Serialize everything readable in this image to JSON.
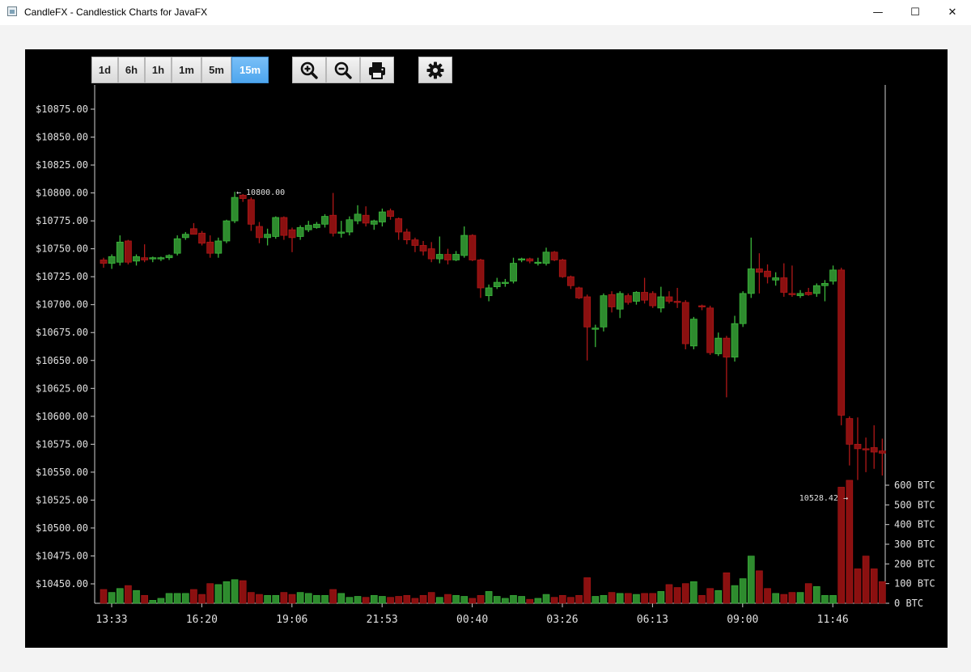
{
  "window": {
    "title": "CandleFX - Candlestick Charts for JavaFX",
    "controls": {
      "minimize": "—",
      "maximize": "☐",
      "close": "✕"
    }
  },
  "toolbar": {
    "granularity": [
      {
        "label": "1d",
        "active": false
      },
      {
        "label": "6h",
        "active": false
      },
      {
        "label": "1h",
        "active": false
      },
      {
        "label": "1m",
        "active": false
      },
      {
        "label": "5m",
        "active": false
      },
      {
        "label": "15m",
        "active": true
      }
    ],
    "icons": [
      "zoom-in-icon",
      "zoom-out-icon",
      "print-icon",
      "settings-gear-icon"
    ],
    "accent": "#5aaff2"
  },
  "colors": {
    "up": "#2e8b2e",
    "down": "#8b1010",
    "up_wick": "#3cb83c",
    "down_wick": "#b01818",
    "background": "#000000",
    "axis_text": "#e0e0e0"
  },
  "chart_data": {
    "type": "candlestick",
    "price_axis": {
      "ticks": [
        "$10875.00",
        "$10850.00",
        "$10825.00",
        "$10800.00",
        "$10775.00",
        "$10750.00",
        "$10725.00",
        "$10700.00",
        "$10675.00",
        "$10650.00",
        "$10625.00",
        "$10600.00",
        "$10575.00",
        "$10550.00",
        "$10525.00",
        "$10500.00",
        "$10475.00",
        "$10450.00"
      ],
      "range": [
        10432,
        10895
      ]
    },
    "volume_axis": {
      "ticks": [
        "600 BTC",
        "500 BTC",
        "400 BTC",
        "300 BTC",
        "200 BTC",
        "100 BTC",
        "0 BTC"
      ],
      "range": [
        0,
        600
      ]
    },
    "time_axis": {
      "ticks": [
        "13:33",
        "16:20",
        "19:06",
        "21:53",
        "00:40",
        "03:26",
        "06:13",
        "09:00",
        "11:46"
      ]
    },
    "annotations": {
      "high": "← 10800.00",
      "low": "10528.42 →"
    },
    "candles": [
      {
        "o": 10740,
        "h": 10742,
        "l": 10733,
        "c": 10737,
        "v": 70
      },
      {
        "o": 10737,
        "h": 10745,
        "l": 10732,
        "c": 10743,
        "v": 55
      },
      {
        "o": 10738,
        "h": 10762,
        "l": 10735,
        "c": 10756,
        "v": 75
      },
      {
        "o": 10757,
        "h": 10758,
        "l": 10736,
        "c": 10738,
        "v": 90
      },
      {
        "o": 10739,
        "h": 10745,
        "l": 10735,
        "c": 10743,
        "v": 65
      },
      {
        "o": 10742,
        "h": 10754,
        "l": 10738,
        "c": 10740,
        "v": 40
      },
      {
        "o": 10741,
        "h": 10743,
        "l": 10738,
        "c": 10742,
        "v": 15
      },
      {
        "o": 10741,
        "h": 10743,
        "l": 10739,
        "c": 10742,
        "v": 25
      },
      {
        "o": 10742,
        "h": 10745,
        "l": 10740,
        "c": 10744,
        "v": 50
      },
      {
        "o": 10746,
        "h": 10762,
        "l": 10744,
        "c": 10759,
        "v": 50
      },
      {
        "o": 10760,
        "h": 10765,
        "l": 10758,
        "c": 10763,
        "v": 50
      },
      {
        "o": 10768,
        "h": 10773,
        "l": 10764,
        "c": 10763,
        "v": 70
      },
      {
        "o": 10764,
        "h": 10766,
        "l": 10753,
        "c": 10755,
        "v": 45
      },
      {
        "o": 10756,
        "h": 10762,
        "l": 10742,
        "c": 10746,
        "v": 100
      },
      {
        "o": 10746,
        "h": 10760,
        "l": 10742,
        "c": 10757,
        "v": 95
      },
      {
        "o": 10757,
        "h": 10776,
        "l": 10755,
        "c": 10775,
        "v": 110
      },
      {
        "o": 10775,
        "h": 10801,
        "l": 10773,
        "c": 10796,
        "v": 120
      },
      {
        "o": 10798,
        "h": 10799,
        "l": 10792,
        "c": 10795,
        "v": 115
      },
      {
        "o": 10794,
        "h": 10796,
        "l": 10766,
        "c": 10772,
        "v": 55
      },
      {
        "o": 10770,
        "h": 10774,
        "l": 10755,
        "c": 10760,
        "v": 45
      },
      {
        "o": 10760,
        "h": 10768,
        "l": 10753,
        "c": 10763,
        "v": 40
      },
      {
        "o": 10761,
        "h": 10779,
        "l": 10759,
        "c": 10778,
        "v": 40
      },
      {
        "o": 10778,
        "h": 10779,
        "l": 10758,
        "c": 10762,
        "v": 55
      },
      {
        "o": 10767,
        "h": 10769,
        "l": 10747,
        "c": 10760,
        "v": 45
      },
      {
        "o": 10761,
        "h": 10771,
        "l": 10758,
        "c": 10769,
        "v": 55
      },
      {
        "o": 10767,
        "h": 10775,
        "l": 10765,
        "c": 10771,
        "v": 50
      },
      {
        "o": 10769,
        "h": 10774,
        "l": 10768,
        "c": 10772,
        "v": 40
      },
      {
        "o": 10772,
        "h": 10781,
        "l": 10769,
        "c": 10779,
        "v": 40
      },
      {
        "o": 10780,
        "h": 10800,
        "l": 10761,
        "c": 10764,
        "v": 70
      },
      {
        "o": 10764,
        "h": 10775,
        "l": 10760,
        "c": 10765,
        "v": 50
      },
      {
        "o": 10765,
        "h": 10779,
        "l": 10762,
        "c": 10776,
        "v": 30
      },
      {
        "o": 10775,
        "h": 10789,
        "l": 10772,
        "c": 10781,
        "v": 35
      },
      {
        "o": 10780,
        "h": 10788,
        "l": 10770,
        "c": 10773,
        "v": 30
      },
      {
        "o": 10772,
        "h": 10776,
        "l": 10767,
        "c": 10775,
        "v": 40
      },
      {
        "o": 10774,
        "h": 10786,
        "l": 10770,
        "c": 10783,
        "v": 35
      },
      {
        "o": 10784,
        "h": 10786,
        "l": 10776,
        "c": 10779,
        "v": 30
      },
      {
        "o": 10777,
        "h": 10778,
        "l": 10758,
        "c": 10765,
        "v": 35
      },
      {
        "o": 10765,
        "h": 10768,
        "l": 10754,
        "c": 10758,
        "v": 40
      },
      {
        "o": 10758,
        "h": 10760,
        "l": 10747,
        "c": 10753,
        "v": 25
      },
      {
        "o": 10753,
        "h": 10757,
        "l": 10744,
        "c": 10748,
        "v": 40
      },
      {
        "o": 10750,
        "h": 10756,
        "l": 10738,
        "c": 10741,
        "v": 55
      },
      {
        "o": 10741,
        "h": 10761,
        "l": 10737,
        "c": 10745,
        "v": 30
      },
      {
        "o": 10745,
        "h": 10750,
        "l": 10736,
        "c": 10740,
        "v": 45
      },
      {
        "o": 10740,
        "h": 10748,
        "l": 10739,
        "c": 10745,
        "v": 40
      },
      {
        "o": 10744,
        "h": 10770,
        "l": 10742,
        "c": 10762,
        "v": 35
      },
      {
        "o": 10762,
        "h": 10763,
        "l": 10739,
        "c": 10740,
        "v": 25
      },
      {
        "o": 10740,
        "h": 10741,
        "l": 10706,
        "c": 10715,
        "v": 40
      },
      {
        "o": 10708,
        "h": 10718,
        "l": 10703,
        "c": 10715,
        "v": 60
      },
      {
        "o": 10716,
        "h": 10724,
        "l": 10714,
        "c": 10720,
        "v": 35
      },
      {
        "o": 10719,
        "h": 10723,
        "l": 10716,
        "c": 10720,
        "v": 25
      },
      {
        "o": 10721,
        "h": 10742,
        "l": 10719,
        "c": 10737,
        "v": 40
      },
      {
        "o": 10741,
        "h": 10742,
        "l": 10738,
        "c": 10741,
        "v": 35
      },
      {
        "o": 10741,
        "h": 10742,
        "l": 10737,
        "c": 10739,
        "v": 20
      },
      {
        "o": 10738,
        "h": 10742,
        "l": 10735,
        "c": 10738,
        "v": 25
      },
      {
        "o": 10737,
        "h": 10751,
        "l": 10735,
        "c": 10747,
        "v": 45
      },
      {
        "o": 10747,
        "h": 10748,
        "l": 10739,
        "c": 10740,
        "v": 30
      },
      {
        "o": 10740,
        "h": 10741,
        "l": 10724,
        "c": 10725,
        "v": 40
      },
      {
        "o": 10725,
        "h": 10726,
        "l": 10714,
        "c": 10717,
        "v": 30
      },
      {
        "o": 10715,
        "h": 10716,
        "l": 10705,
        "c": 10706,
        "v": 40
      },
      {
        "o": 10707,
        "h": 10709,
        "l": 10650,
        "c": 10680,
        "v": 130
      },
      {
        "o": 10678,
        "h": 10682,
        "l": 10662,
        "c": 10679,
        "v": 35
      },
      {
        "o": 10680,
        "h": 10710,
        "l": 10676,
        "c": 10708,
        "v": 40
      },
      {
        "o": 10709,
        "h": 10712,
        "l": 10693,
        "c": 10698,
        "v": 55
      },
      {
        "o": 10696,
        "h": 10712,
        "l": 10688,
        "c": 10710,
        "v": 50
      },
      {
        "o": 10708,
        "h": 10710,
        "l": 10700,
        "c": 10702,
        "v": 50
      },
      {
        "o": 10703,
        "h": 10712,
        "l": 10700,
        "c": 10711,
        "v": 45
      },
      {
        "o": 10711,
        "h": 10724,
        "l": 10701,
        "c": 10704,
        "v": 50
      },
      {
        "o": 10710,
        "h": 10712,
        "l": 10697,
        "c": 10699,
        "v": 50
      },
      {
        "o": 10697,
        "h": 10716,
        "l": 10693,
        "c": 10707,
        "v": 60
      },
      {
        "o": 10707,
        "h": 10712,
        "l": 10701,
        "c": 10703,
        "v": 95
      },
      {
        "o": 10703,
        "h": 10715,
        "l": 10697,
        "c": 10702,
        "v": 80
      },
      {
        "o": 10702,
        "h": 10704,
        "l": 10660,
        "c": 10665,
        "v": 100
      },
      {
        "o": 10663,
        "h": 10689,
        "l": 10660,
        "c": 10687,
        "v": 110
      },
      {
        "o": 10699,
        "h": 10700,
        "l": 10695,
        "c": 10698,
        "v": 40
      },
      {
        "o": 10697,
        "h": 10699,
        "l": 10655,
        "c": 10657,
        "v": 75
      },
      {
        "o": 10656,
        "h": 10675,
        "l": 10654,
        "c": 10670,
        "v": 65
      },
      {
        "o": 10670,
        "h": 10672,
        "l": 10617,
        "c": 10653,
        "v": 155
      },
      {
        "o": 10653,
        "h": 10690,
        "l": 10649,
        "c": 10683,
        "v": 90
      },
      {
        "o": 10683,
        "h": 10712,
        "l": 10680,
        "c": 10710,
        "v": 125
      },
      {
        "o": 10710,
        "h": 10760,
        "l": 10706,
        "c": 10732,
        "v": 240
      },
      {
        "o": 10732,
        "h": 10746,
        "l": 10710,
        "c": 10729,
        "v": 165
      },
      {
        "o": 10730,
        "h": 10736,
        "l": 10719,
        "c": 10725,
        "v": 75
      },
      {
        "o": 10722,
        "h": 10729,
        "l": 10717,
        "c": 10724,
        "v": 50
      },
      {
        "o": 10724,
        "h": 10737,
        "l": 10707,
        "c": 10711,
        "v": 45
      },
      {
        "o": 10710,
        "h": 10735,
        "l": 10707,
        "c": 10709,
        "v": 55
      },
      {
        "o": 10708,
        "h": 10713,
        "l": 10706,
        "c": 10710,
        "v": 55
      },
      {
        "o": 10711,
        "h": 10715,
        "l": 10708,
        "c": 10709,
        "v": 100
      },
      {
        "o": 10710,
        "h": 10719,
        "l": 10707,
        "c": 10717,
        "v": 85
      },
      {
        "o": 10717,
        "h": 10722,
        "l": 10703,
        "c": 10719,
        "v": 40
      },
      {
        "o": 10721,
        "h": 10735,
        "l": 10718,
        "c": 10731,
        "v": 40
      },
      {
        "o": 10731,
        "h": 10733,
        "l": 10592,
        "c": 10601,
        "v": 590
      },
      {
        "o": 10598,
        "h": 10600,
        "l": 10556,
        "c": 10575,
        "v": 625
      },
      {
        "o": 10575,
        "h": 10599,
        "l": 10543,
        "c": 10571,
        "v": 175
      },
      {
        "o": 10571,
        "h": 10581,
        "l": 10550,
        "c": 10570,
        "v": 240
      },
      {
        "o": 10572,
        "h": 10592,
        "l": 10553,
        "c": 10568,
        "v": 175
      },
      {
        "o": 10569,
        "h": 10580,
        "l": 10547,
        "c": 10567,
        "v": 110
      }
    ]
  }
}
